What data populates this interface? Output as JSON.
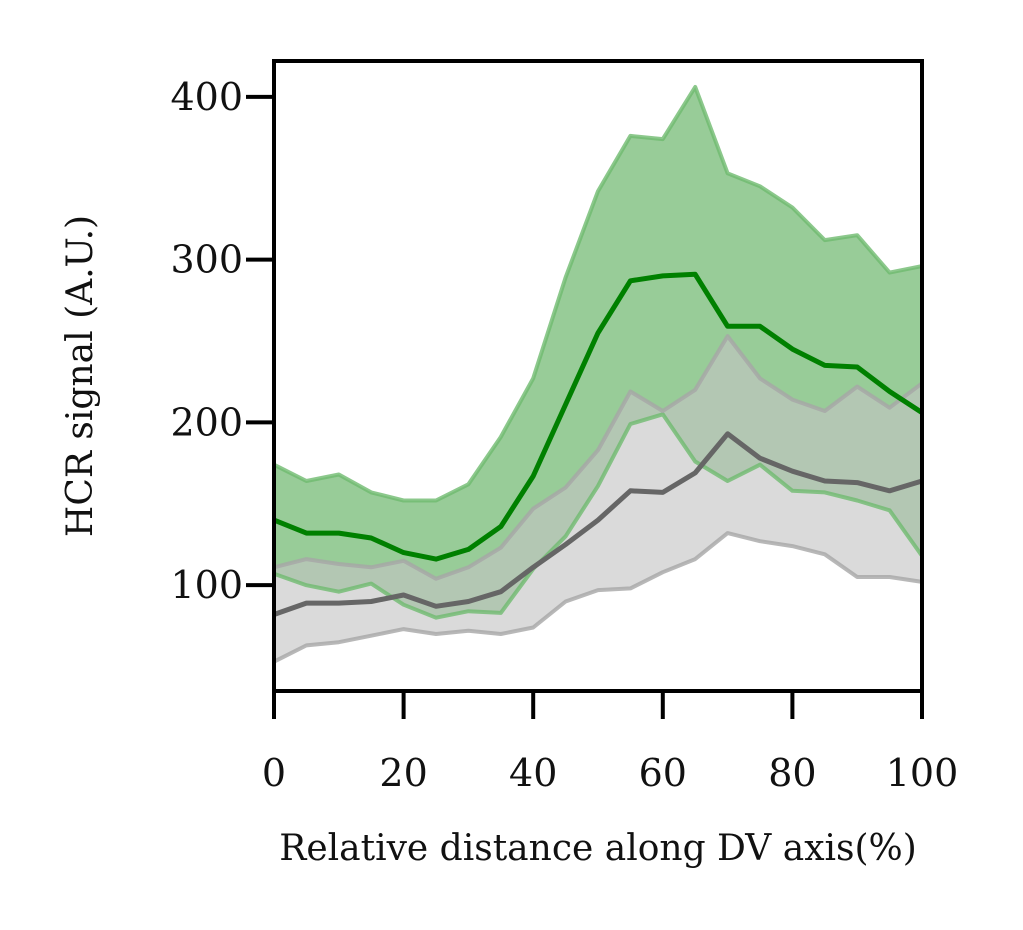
{
  "chart_data": {
    "type": "line",
    "xlabel": "Relative distance along DV axis(%)",
    "ylabel": "HCR signal (A.U.)",
    "xlim": [
      0,
      100
    ],
    "ylim": [
      35,
      422
    ],
    "xticks": [
      0,
      20,
      40,
      60,
      80,
      100
    ],
    "yticks": [
      100,
      200,
      300,
      400
    ],
    "grid": false,
    "x": [
      0,
      5,
      10,
      15,
      20,
      25,
      30,
      35,
      40,
      45,
      50,
      55,
      60,
      65,
      70,
      75,
      80,
      85,
      90,
      95,
      100
    ],
    "series": [
      {
        "color": "#008000",
        "band_color": "#98cc98",
        "band_edge_color": "#6fba6f",
        "mean": [
          140,
          132,
          132,
          129,
          120,
          116,
          122,
          136,
          167,
          211,
          255,
          287,
          290,
          291,
          259,
          259,
          245,
          235,
          234,
          219,
          206
        ],
        "upper": [
          174,
          164,
          168,
          157,
          152,
          152,
          162,
          191,
          227,
          289,
          342,
          376,
          374,
          406,
          353,
          345,
          332,
          312,
          315,
          292,
          296
        ],
        "lower": [
          107,
          100,
          96,
          101,
          88,
          80,
          84,
          83,
          110,
          130,
          161,
          199,
          205,
          176,
          164,
          174,
          158,
          157,
          152,
          146,
          118
        ]
      },
      {
        "color": "#666666",
        "band_color": "#c4c4c4",
        "band_edge_color": "#a6a6a6",
        "mean": [
          82,
          89,
          89,
          90,
          94,
          87,
          90,
          96,
          111,
          125,
          140,
          158,
          157,
          169,
          193,
          178,
          170,
          164,
          163,
          158,
          164
        ],
        "upper": [
          111,
          116,
          113,
          111,
          115,
          104,
          111,
          123,
          147,
          160,
          183,
          219,
          207,
          220,
          253,
          227,
          214,
          207,
          222,
          209,
          224
        ],
        "lower": [
          53,
          63,
          65,
          69,
          73,
          70,
          72,
          70,
          74,
          90,
          97,
          98,
          108,
          116,
          132,
          127,
          124,
          119,
          105,
          105,
          102
        ]
      }
    ]
  }
}
